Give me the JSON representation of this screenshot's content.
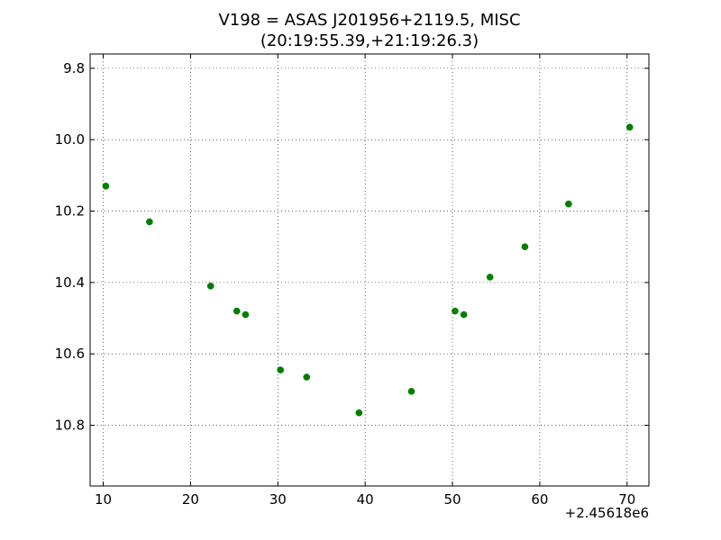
{
  "chart_data": {
    "type": "scatter",
    "title_line1": "V198 = ASAS J201956+2119.5, MISC",
    "title_line2": "(20:19:55.39,+21:19:26.3)",
    "x_offset_label": "+2.45618e6",
    "xlabel": "",
    "ylabel": "",
    "xlim": [
      8.5,
      72.5
    ],
    "ylim": [
      10.97,
      9.76
    ],
    "y_inverted": true,
    "grid": true,
    "marker_color": "#007f00",
    "x_ticks": [
      10,
      20,
      30,
      40,
      50,
      60,
      70
    ],
    "x_tick_labels": [
      "10",
      "20",
      "30",
      "40",
      "50",
      "60",
      "70"
    ],
    "y_ticks": [
      9.8,
      10.0,
      10.2,
      10.4,
      10.6,
      10.8
    ],
    "y_tick_labels": [
      "9.8",
      "10.0",
      "10.2",
      "10.4",
      "10.6",
      "10.8"
    ],
    "series": [
      {
        "x": [
          10.3,
          15.3,
          22.3,
          25.3,
          26.3,
          30.3,
          33.3,
          39.3,
          45.3,
          50.3,
          51.3,
          54.3,
          58.3,
          63.3,
          70.3
        ],
        "y": [
          10.13,
          10.23,
          10.41,
          10.48,
          10.49,
          10.645,
          10.665,
          10.765,
          10.705,
          10.48,
          10.49,
          10.385,
          10.3,
          10.18,
          9.965
        ]
      }
    ]
  }
}
